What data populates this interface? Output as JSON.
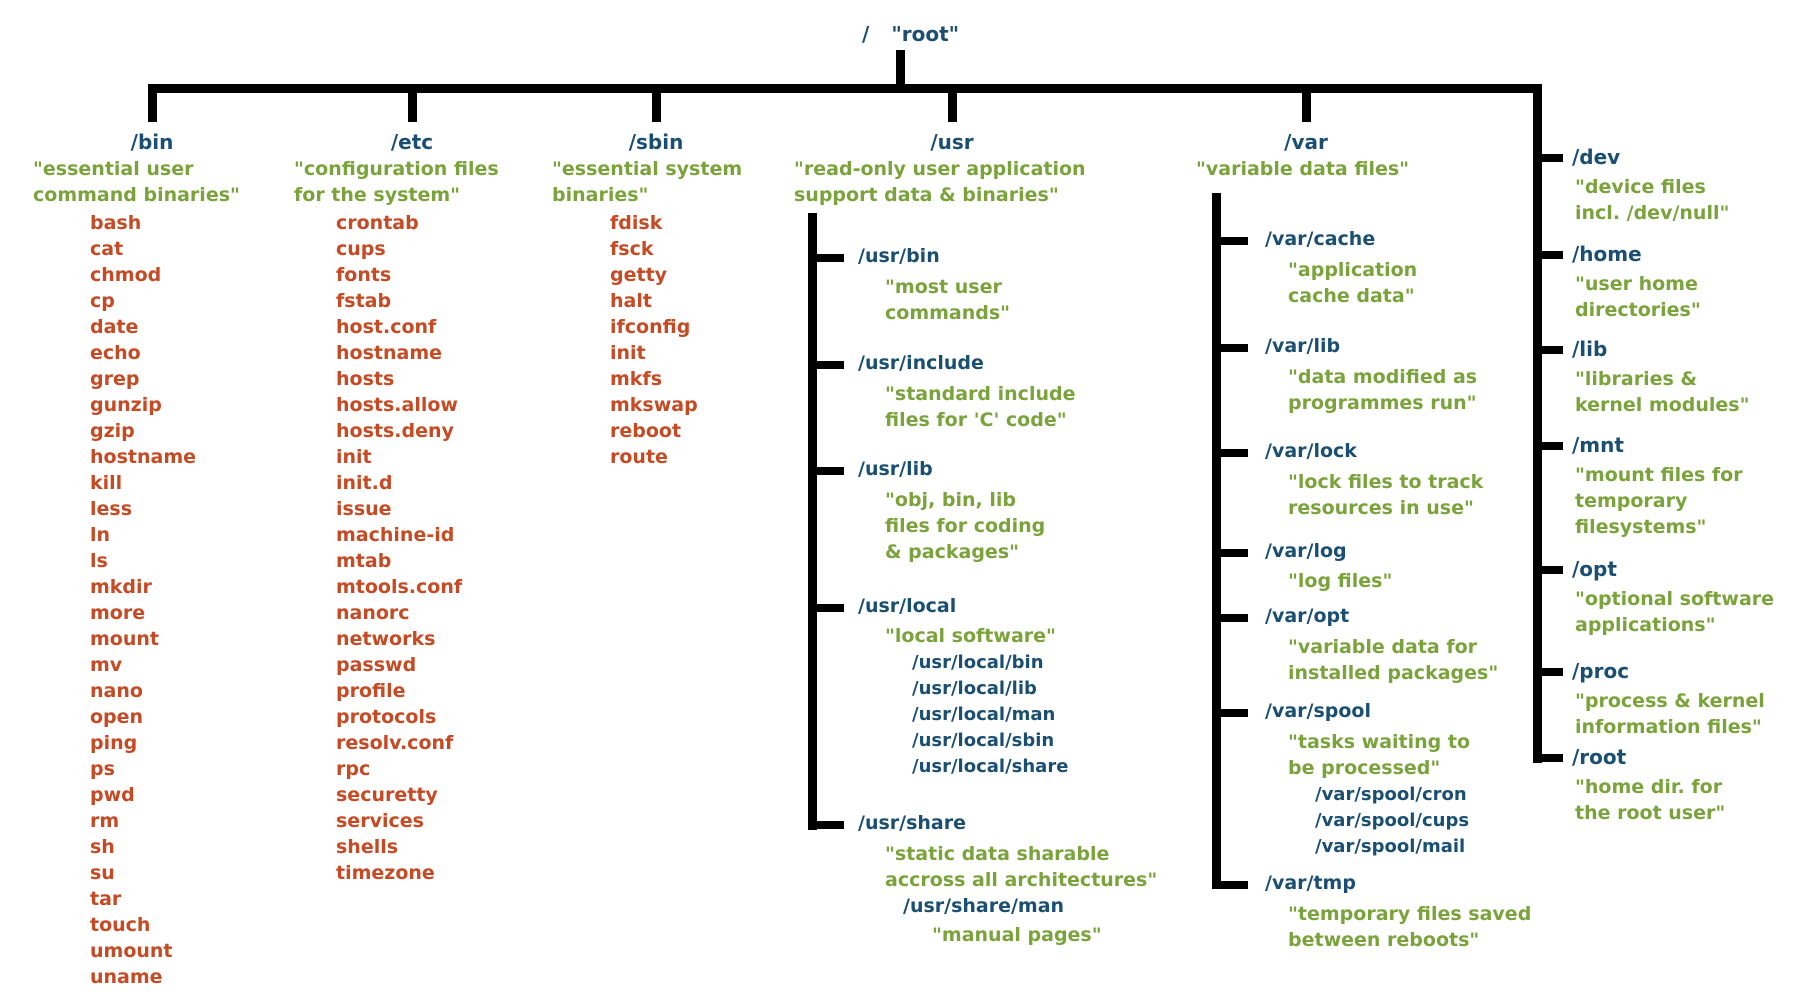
{
  "colors": {
    "heading": "#1b4f72",
    "description": "#7ba33b",
    "item": "#c64a23",
    "line": "#000000"
  },
  "root": {
    "path": "/",
    "label": "\"root\""
  },
  "bin": {
    "title": "/bin",
    "desc": [
      "\"essential user",
      "command binaries\""
    ],
    "items": [
      "bash",
      "cat",
      "chmod",
      "cp",
      "date",
      "echo",
      "grep",
      "gunzip",
      "gzip",
      "hostname",
      "kill",
      "less",
      "ln",
      "ls",
      "mkdir",
      "more",
      "mount",
      "mv",
      "nano",
      "open",
      "ping",
      "ps",
      "pwd",
      "rm",
      "sh",
      "su",
      "tar",
      "touch",
      "umount",
      "uname"
    ]
  },
  "etc": {
    "title": "/etc",
    "desc": [
      "\"configuration files",
      "for the system\""
    ],
    "items": [
      "crontab",
      "cups",
      "fonts",
      "fstab",
      "host.conf",
      "hostname",
      "hosts",
      "hosts.allow",
      "hosts.deny",
      "init",
      "init.d",
      "issue",
      "machine-id",
      "mtab",
      "mtools.conf",
      "nanorc",
      "networks",
      "passwd",
      "profile",
      "protocols",
      "resolv.conf",
      "rpc",
      "securetty",
      "services",
      "shells",
      "timezone"
    ]
  },
  "sbin": {
    "title": "/sbin",
    "desc": [
      "\"essential system",
      "binaries\""
    ],
    "items": [
      "fdisk",
      "fsck",
      "getty",
      "halt",
      "ifconfig",
      "init",
      "mkfs",
      "mkswap",
      "reboot",
      "route"
    ]
  },
  "usr": {
    "title": "/usr",
    "desc": [
      "\"read-only user application",
      "support data & binaries\""
    ],
    "bin": {
      "title": "/usr/bin",
      "desc": [
        "\"most user",
        "commands\""
      ]
    },
    "include": {
      "title": "/usr/include",
      "desc": [
        "\"standard include",
        "files for 'C' code\""
      ]
    },
    "lib": {
      "title": "/usr/lib",
      "desc": [
        "\"obj, bin, lib",
        "files for coding",
        "& packages\""
      ]
    },
    "local": {
      "title": "/usr/local",
      "desc": [
        "\"local software\""
      ],
      "subitems": [
        "/usr/local/bin",
        "/usr/local/lib",
        "/usr/local/man",
        "/usr/local/sbin",
        "/usr/local/share"
      ]
    },
    "share": {
      "title": "/usr/share",
      "desc": [
        "\"static data sharable",
        "accross all architectures\""
      ],
      "man": {
        "title": "/usr/share/man",
        "desc": [
          "\"manual pages\""
        ]
      }
    }
  },
  "var": {
    "title": "/var",
    "desc": [
      "\"variable data files\""
    ],
    "cache": {
      "title": "/var/cache",
      "desc": [
        "\"application",
        "cache data\""
      ]
    },
    "lib": {
      "title": "/var/lib",
      "desc": [
        "\"data modified as",
        "programmes run\""
      ]
    },
    "lock": {
      "title": "/var/lock",
      "desc": [
        "\"lock files to track",
        "resources in use\""
      ]
    },
    "log": {
      "title": "/var/log",
      "desc": [
        "\"log files\""
      ]
    },
    "opt": {
      "title": "/var/opt",
      "desc": [
        "\"variable data for",
        "installed packages\""
      ]
    },
    "spool": {
      "title": "/var/spool",
      "desc": [
        "\"tasks waiting to",
        "be processed\""
      ],
      "subitems": [
        "/var/spool/cron",
        "/var/spool/cups",
        "/var/spool/mail"
      ]
    },
    "tmp": {
      "title": "/var/tmp",
      "desc": [
        "\"temporary files saved",
        "between reboots\""
      ]
    }
  },
  "dev": {
    "title": "/dev",
    "desc": [
      "\"device files",
      "incl. /dev/null\""
    ]
  },
  "home": {
    "title": "/home",
    "desc": [
      "\"user home",
      "directories\""
    ]
  },
  "lib": {
    "title": "/lib",
    "desc": [
      "\"libraries &",
      "kernel modules\""
    ]
  },
  "mnt": {
    "title": "/mnt",
    "desc": [
      "\"mount files for",
      "temporary",
      "filesystems\""
    ]
  },
  "opt": {
    "title": "/opt",
    "desc": [
      "\"optional software",
      "applications\""
    ]
  },
  "proc": {
    "title": "/proc",
    "desc": [
      "\"process & kernel",
      "information files\""
    ]
  },
  "rootdir": {
    "title": "/root",
    "desc": [
      "\"home dir. for",
      "the root user\""
    ]
  }
}
